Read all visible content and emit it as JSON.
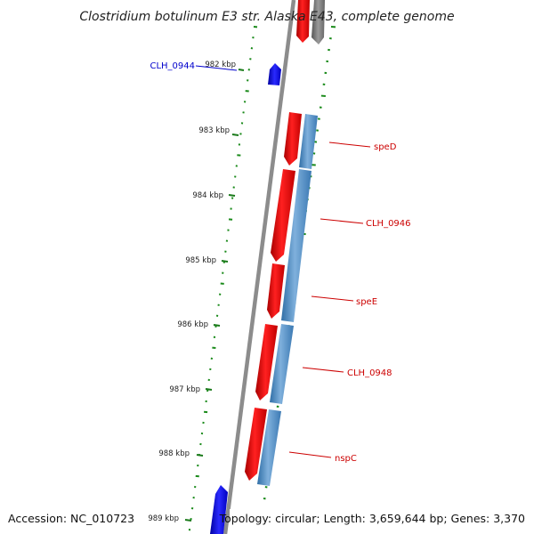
{
  "title": "Clostridium botulinum E3 str. Alaska E43, complete genome",
  "footer": {
    "accession": "Accession: NC_010723",
    "summary": "Topology: circular; Length: 3,659,644 bp; Genes: 3,370"
  },
  "scale": {
    "ticks": [
      {
        "label": "982 kbp"
      },
      {
        "label": "983 kbp"
      },
      {
        "label": "984 kbp"
      },
      {
        "label": "985 kbp"
      },
      {
        "label": "986 kbp"
      },
      {
        "label": "987 kbp"
      },
      {
        "label": "988 kbp"
      },
      {
        "label": "989 kbp"
      }
    ]
  },
  "genes": [
    {
      "label": "CLH_0944",
      "color": "#0000cc"
    },
    {
      "label": "speD",
      "color": "#cc0000"
    },
    {
      "label": "CLH_0946",
      "color": "#cc0000"
    },
    {
      "label": "speE",
      "color": "#cc0000"
    },
    {
      "label": "CLH_0948",
      "color": "#cc0000"
    },
    {
      "label": "nspC",
      "color": "#cc0000"
    }
  ],
  "colors": {
    "forward_cds": "#ee0000",
    "reverse_cds": "#0000ee",
    "cog_track": "#4a86bd",
    "backbone": "#8c8c8c",
    "gc_dots": "#1a8a1a"
  }
}
